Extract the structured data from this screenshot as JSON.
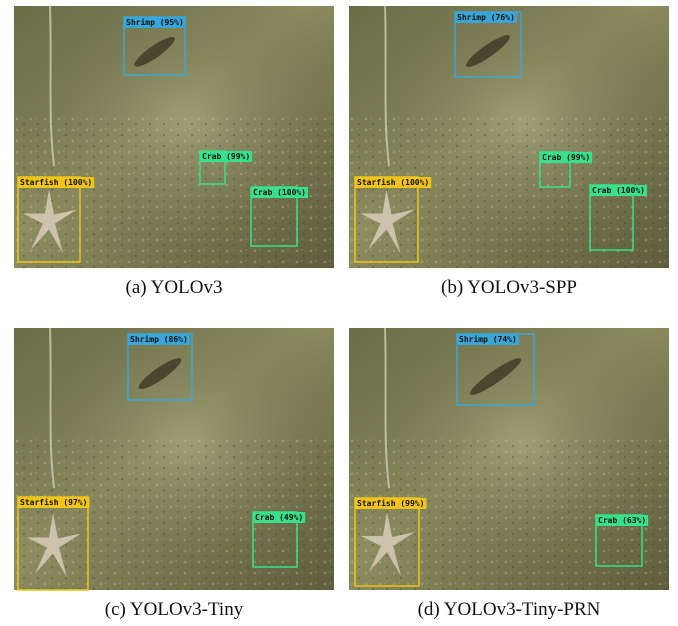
{
  "panels": [
    {
      "caption": "(a) YOLOv3",
      "detections": [
        {
          "label": "Shrimp (95%)",
          "color": "#3aa6d8"
        },
        {
          "label": "Crab (99%)",
          "color": "#39e08c"
        },
        {
          "label": "Crab (100%)",
          "color": "#39e08c"
        },
        {
          "label": "Starfish (100%)",
          "color": "#f0c419"
        }
      ]
    },
    {
      "caption": "(b) YOLOv3-SPP",
      "detections": [
        {
          "label": "Shrimp (76%)",
          "color": "#3aa6d8"
        },
        {
          "label": "Crab (99%)",
          "color": "#39e08c"
        },
        {
          "label": "Crab (100%)",
          "color": "#39e08c"
        },
        {
          "label": "Starfish (100%)",
          "color": "#f0c419"
        }
      ]
    },
    {
      "caption": "(c) YOLOv3-Tiny",
      "detections": [
        {
          "label": "Shrimp (86%)",
          "color": "#3aa6d8"
        },
        {
          "label": "Crab (49%)",
          "color": "#39e08c"
        },
        {
          "label": "Starfish (97%)",
          "color": "#f0c419"
        }
      ]
    },
    {
      "caption": "(d) YOLOv3-Tiny-PRN",
      "detections": [
        {
          "label": "Shrimp (74%)",
          "color": "#3aa6d8"
        },
        {
          "label": "Crab (63%)",
          "color": "#39e08c"
        },
        {
          "label": "Starfish (99%)",
          "color": "#f0c419"
        }
      ]
    }
  ]
}
